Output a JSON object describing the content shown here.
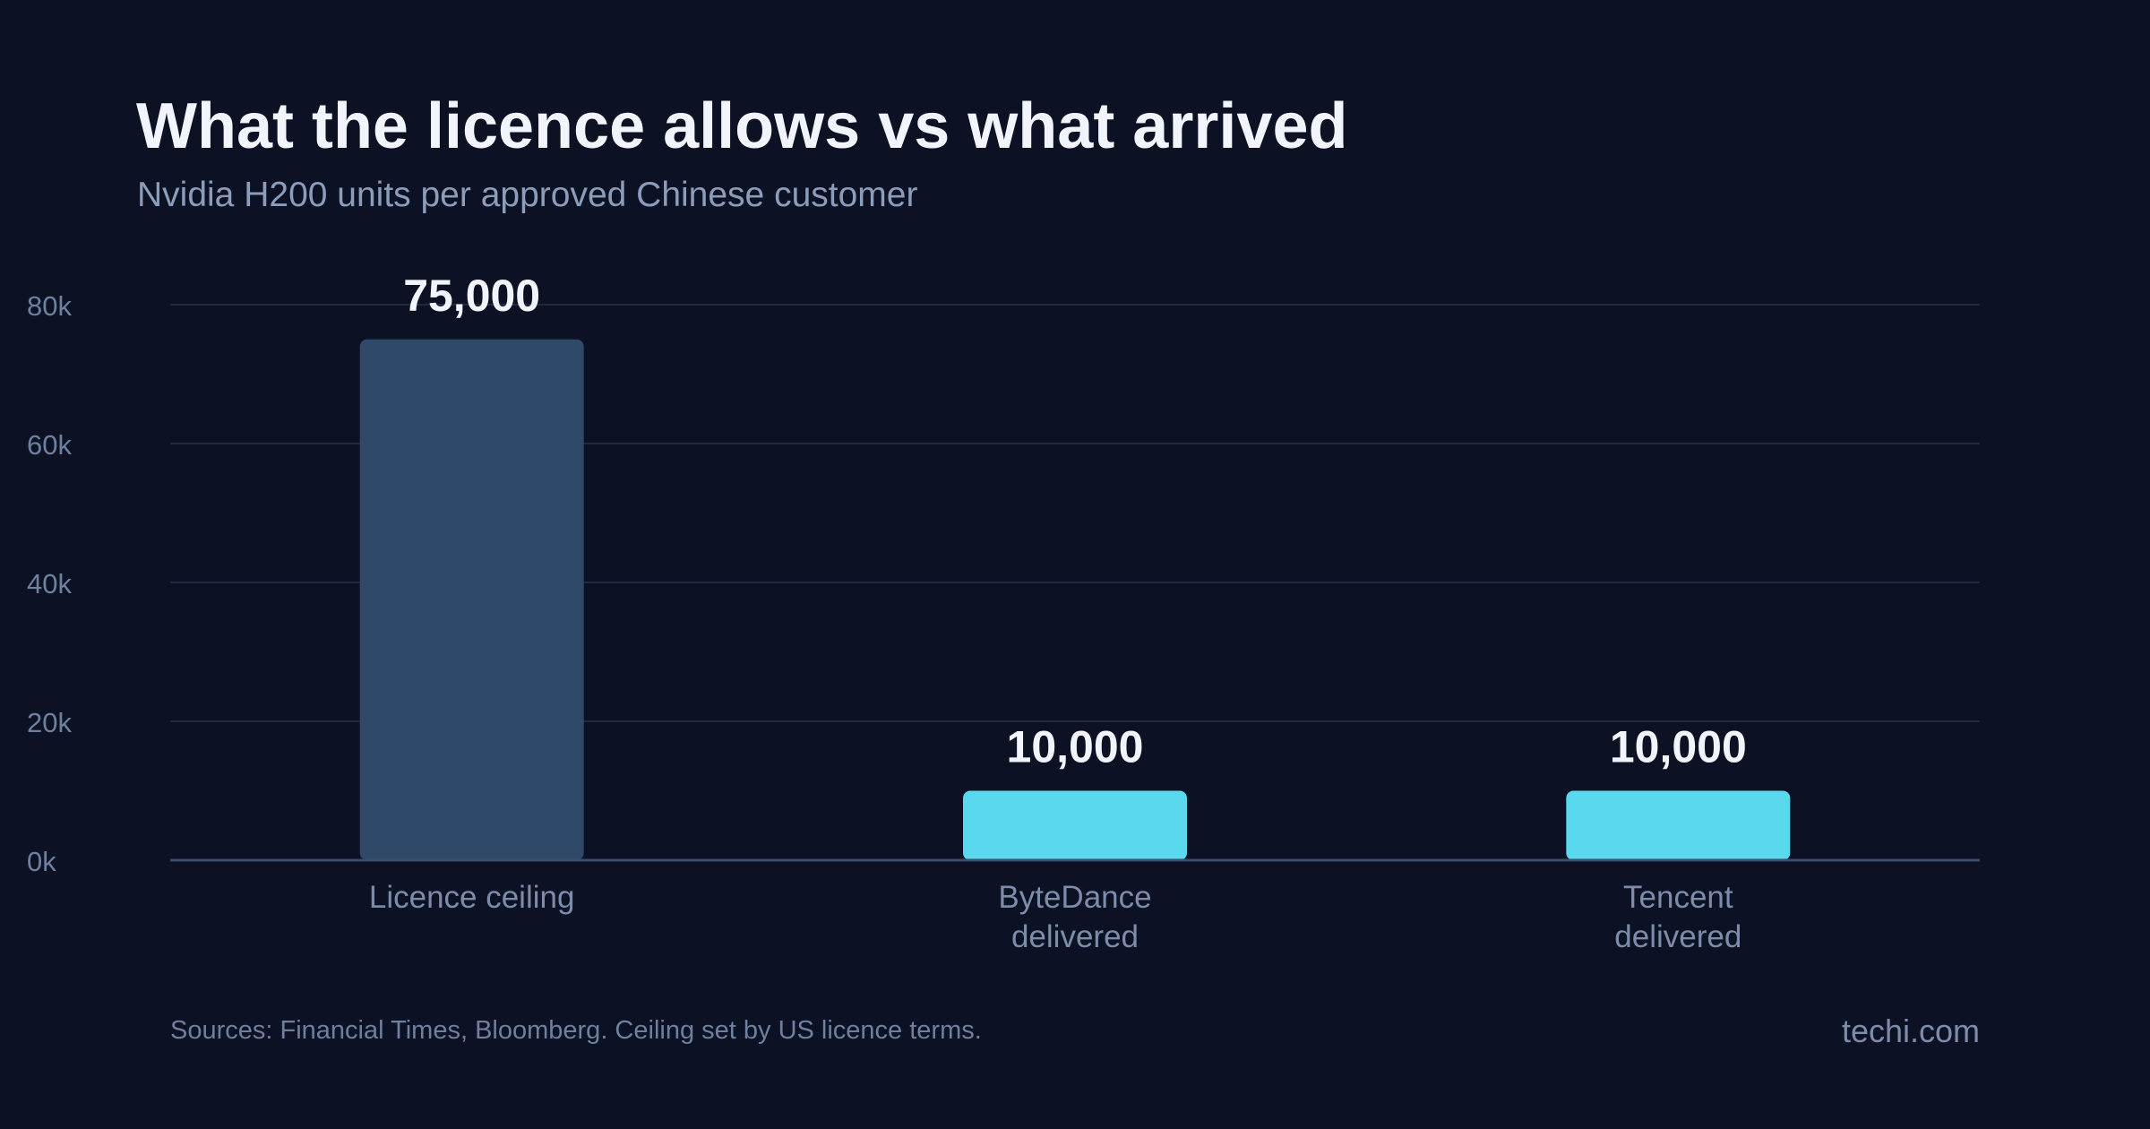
{
  "title": "What the licence allows vs what arrived",
  "subtitle": "Nvidia H200 units per approved Chinese customer",
  "footer": {
    "sources": "Sources: Financial Times, Bloomberg. Ceiling set by US licence terms.",
    "brand": "techi.com"
  },
  "colors": {
    "background": "#0c1223",
    "ceiling_bar": "#2e4a68",
    "delivered_bar": "#5ad8ee",
    "gridline": "#1f2a40",
    "axis": "#3a4c6a",
    "tick_label": "#6f7f9e",
    "category_label": "#7c8caa",
    "value_label": "#f1f5fb"
  },
  "chart_data": {
    "type": "bar",
    "title": "What the licence allows vs what arrived",
    "subtitle": "Nvidia H200 units per approved Chinese customer",
    "categories": [
      [
        "Licence ceiling"
      ],
      [
        "ByteDance",
        "delivered"
      ],
      [
        "Tencent",
        "delivered"
      ]
    ],
    "values": [
      75000,
      10000,
      10000
    ],
    "value_labels": [
      "75,000",
      "10,000",
      "10,000"
    ],
    "bar_colors": [
      "#2e4a68",
      "#5ad8ee",
      "#5ad8ee"
    ],
    "ylim": [
      0,
      80000
    ],
    "yticks": [
      0,
      20000,
      40000,
      60000,
      80000
    ],
    "ytick_labels": [
      "0k",
      "20k",
      "40k",
      "60k",
      "80k"
    ],
    "grid": true,
    "legend": "none"
  }
}
